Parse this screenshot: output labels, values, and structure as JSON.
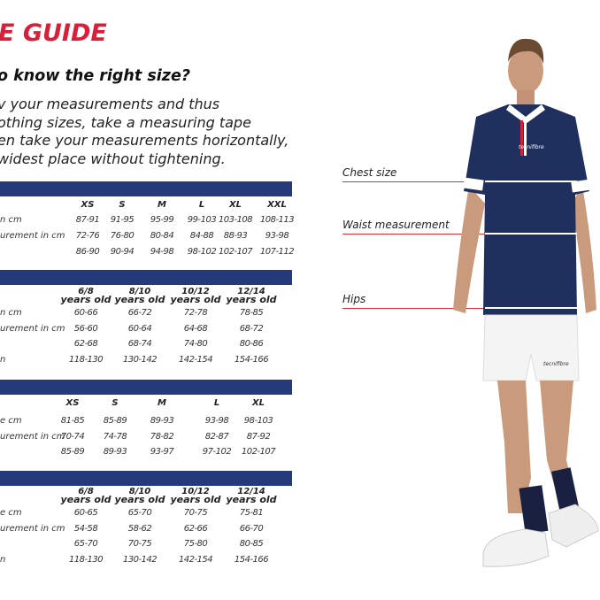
{
  "title": "E GUIDE",
  "question": "o know the right size?",
  "intro": [
    "v your measurements and thus",
    "othing sizes, take a measuring tape",
    "en take your measurements horizontally,",
    "widest place without tightening."
  ],
  "tables": [
    {
      "sizes": [
        "XS",
        "S",
        "M",
        "L",
        "XL",
        "XXL"
      ],
      "row_labels": [
        "n cm",
        "urement in cm",
        ""
      ],
      "rows": [
        [
          "87-91",
          "91-95",
          "95-99",
          "99-103",
          "103-108",
          "108-113"
        ],
        [
          "72-76",
          "76-80",
          "80-84",
          "84-88",
          "88-93",
          "93-98"
        ],
        [
          "86-90",
          "90-94",
          "94-98",
          "98-102",
          "102-107",
          "107-112"
        ]
      ]
    },
    {
      "sizes": [
        [
          "6/8",
          "years old"
        ],
        [
          "8/10",
          "years old"
        ],
        [
          "10/12",
          "years old"
        ],
        [
          "12/14",
          "years old"
        ]
      ],
      "row_labels": [
        "n cm",
        "urement in cm",
        "",
        "n"
      ],
      "rows": [
        [
          "60-66",
          "66-72",
          "72-78",
          "78-85"
        ],
        [
          "56-60",
          "60-64",
          "64-68",
          "68-72"
        ],
        [
          "62-68",
          "68-74",
          "74-80",
          "80-86"
        ],
        [
          "118-130",
          "130-142",
          "142-154",
          "154-166"
        ]
      ]
    },
    {
      "sizes": [
        "XS",
        "S",
        "M",
        "L",
        "XL"
      ],
      "row_labels": [
        "e cm",
        "urement in cm",
        ""
      ],
      "rows": [
        [
          "81-85",
          "85-89",
          "89-93",
          "93-98",
          "98-103"
        ],
        [
          "70-74",
          "74-78",
          "78-82",
          "82-87",
          "87-92"
        ],
        [
          "85-89",
          "89-93",
          "93-97",
          "97-102",
          "102-107"
        ]
      ]
    },
    {
      "sizes": [
        [
          "6/8",
          "years old"
        ],
        [
          "8/10",
          "years old"
        ],
        [
          "10/12",
          "years old"
        ],
        [
          "12/14",
          "years old"
        ]
      ],
      "row_labels": [
        "e cm",
        "urement in cm",
        "",
        "n"
      ],
      "rows": [
        [
          "60-65",
          "65-70",
          "70-75",
          "75-81"
        ],
        [
          "54-58",
          "58-62",
          "62-66",
          "66-70"
        ],
        [
          "65-70",
          "70-75",
          "75-80",
          "80-85"
        ],
        [
          "118-130",
          "130-142",
          "142-154",
          "154-166"
        ]
      ]
    }
  ],
  "measure_labels": {
    "chest": "Chest size",
    "waist": "Waist measurement",
    "hips": "Hips"
  },
  "brand": "tecnifibre",
  "colors": {
    "title_red": "#d8203a",
    "table_bar": "#243a7a",
    "shirt": "#1f2f5e"
  }
}
